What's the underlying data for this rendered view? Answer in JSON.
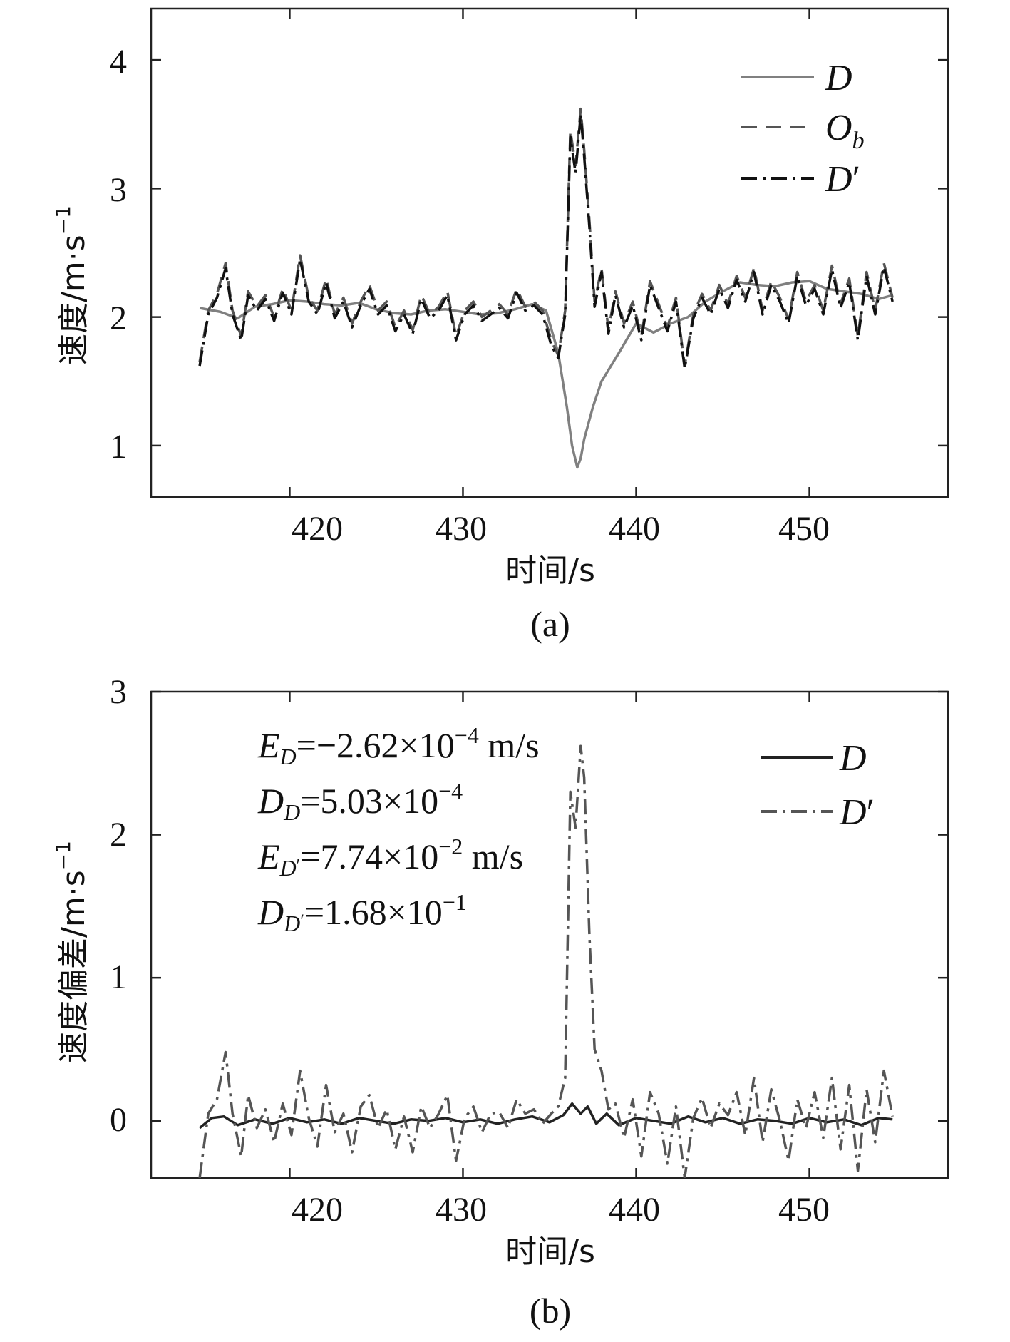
{
  "chart_data": [
    {
      "panel_label": "(a)",
      "type": "line",
      "xlabel": "时间/s",
      "ylabel": "速度/m·s",
      "ylabel_superscript": "−1",
      "xlim": [
        412,
        458
      ],
      "ylim": [
        0.6,
        4.4
      ],
      "xticks": [
        "420",
        "430",
        "440",
        "450"
      ],
      "xtick_values": [
        420,
        430,
        440,
        450
      ],
      "yticks": [
        "1",
        "2",
        "3",
        "4"
      ],
      "ytick_values": [
        1,
        2,
        3,
        4
      ],
      "legend": [
        {
          "name": "D",
          "sub": "",
          "prime": false,
          "style": "solid",
          "color": "#808080"
        },
        {
          "name": "O",
          "sub": "b",
          "prime": false,
          "style": "dashed",
          "color": "#555555"
        },
        {
          "name": "D",
          "sub": "",
          "prime": true,
          "style": "dashdot",
          "color": "#111111"
        }
      ],
      "series": [
        {
          "name": "D",
          "style": "solid",
          "color": "#808080",
          "x": [
            414.8,
            416,
            417,
            418,
            419,
            420,
            421,
            422,
            423,
            424,
            425,
            426,
            427,
            428,
            429,
            430,
            431,
            432,
            433,
            434,
            434.8,
            435.5,
            436,
            436.3,
            436.6,
            436.8,
            437,
            437.5,
            438,
            439,
            440,
            441,
            442,
            443,
            444,
            445,
            446,
            447,
            448,
            449,
            450,
            451,
            452,
            453,
            454,
            454.8
          ],
          "y": [
            2.07,
            2.04,
            1.99,
            2.08,
            2.1,
            2.13,
            2.12,
            2.1,
            2.09,
            2.11,
            2.06,
            2.03,
            2.02,
            2.05,
            2.06,
            2.04,
            2.02,
            2.03,
            2.06,
            2.1,
            2.05,
            1.72,
            1.3,
            1.0,
            0.83,
            0.9,
            1.05,
            1.3,
            1.5,
            1.72,
            1.95,
            1.88,
            1.95,
            2.0,
            2.12,
            2.2,
            2.27,
            2.25,
            2.24,
            2.27,
            2.28,
            2.22,
            2.2,
            2.18,
            2.14,
            2.17
          ]
        },
        {
          "name": "O_b",
          "style": "dashed",
          "color": "#555555",
          "x": [
            414.8,
            415.3,
            415.8,
            416.3,
            416.7,
            417.2,
            417.6,
            418.1,
            418.6,
            419.1,
            419.6,
            420.1,
            420.6,
            421.1,
            421.6,
            422.1,
            422.6,
            423.1,
            423.6,
            424.1,
            424.6,
            425.1,
            425.6,
            426.1,
            426.6,
            427.1,
            427.6,
            428.1,
            428.6,
            429.1,
            429.6,
            430.1,
            430.6,
            431.1,
            431.6,
            432.1,
            432.6,
            433.1,
            433.6,
            434.1,
            434.6,
            435.1,
            435.5,
            435.9,
            436.2,
            436.5,
            436.8,
            437.0,
            437.3,
            437.6,
            438.0,
            438.4,
            438.8,
            439.3,
            439.8,
            440.3,
            440.8,
            441.3,
            441.8,
            442.3,
            442.8,
            443.3,
            443.8,
            444.3,
            444.8,
            445.3,
            445.8,
            446.3,
            446.8,
            447.3,
            447.8,
            448.3,
            448.8,
            449.3,
            449.8,
            450.3,
            450.8,
            451.3,
            451.8,
            452.3,
            452.8,
            453.3,
            453.8,
            454.3,
            454.8
          ],
          "y": [
            1.65,
            2.05,
            2.18,
            2.42,
            2.05,
            1.85,
            2.2,
            2.08,
            2.17,
            2.0,
            2.22,
            2.05,
            2.48,
            2.15,
            2.05,
            2.3,
            2.02,
            2.15,
            1.95,
            2.12,
            2.25,
            2.05,
            2.12,
            1.92,
            2.05,
            1.9,
            2.17,
            2.02,
            2.08,
            2.2,
            1.85,
            2.05,
            2.12,
            2.0,
            2.05,
            2.1,
            2.02,
            2.22,
            2.08,
            2.12,
            2.05,
            1.82,
            1.7,
            2.05,
            3.45,
            3.18,
            3.62,
            3.3,
            2.75,
            2.12,
            2.38,
            1.9,
            2.2,
            1.95,
            2.12,
            1.85,
            2.28,
            2.1,
            1.92,
            2.15,
            1.62,
            2.02,
            2.18,
            2.05,
            2.25,
            2.1,
            2.32,
            2.15,
            2.38,
            2.05,
            2.28,
            2.15,
            1.98,
            2.35,
            2.12,
            2.25,
            2.05,
            2.4,
            2.1,
            2.3,
            1.85,
            2.35,
            2.05,
            2.42,
            2.15
          ]
        },
        {
          "name": "D'",
          "style": "dashdot",
          "color": "#111111",
          "x": [
            414.8,
            415.3,
            415.8,
            416.3,
            416.7,
            417.2,
            417.6,
            418.1,
            418.6,
            419.1,
            419.6,
            420.1,
            420.6,
            421.1,
            421.6,
            422.1,
            422.6,
            423.1,
            423.6,
            424.1,
            424.6,
            425.1,
            425.6,
            426.1,
            426.6,
            427.1,
            427.6,
            428.1,
            428.6,
            429.1,
            429.6,
            430.1,
            430.6,
            431.1,
            431.6,
            432.1,
            432.6,
            433.1,
            433.6,
            434.1,
            434.6,
            435.1,
            435.5,
            435.9,
            436.2,
            436.5,
            436.8,
            437.0,
            437.3,
            437.6,
            438.0,
            438.4,
            438.8,
            439.3,
            439.8,
            440.3,
            440.8,
            441.3,
            441.8,
            442.3,
            442.8,
            443.3,
            443.8,
            444.3,
            444.8,
            445.3,
            445.8,
            446.3,
            446.8,
            447.3,
            447.8,
            448.3,
            448.8,
            449.3,
            449.8,
            450.3,
            450.8,
            451.3,
            451.8,
            452.3,
            452.8,
            453.3,
            453.8,
            454.3,
            454.8
          ],
          "y": [
            1.62,
            2.02,
            2.15,
            2.38,
            2.02,
            1.82,
            2.17,
            2.05,
            2.14,
            1.97,
            2.19,
            2.02,
            2.45,
            2.12,
            2.02,
            2.27,
            1.99,
            2.12,
            1.92,
            2.09,
            2.22,
            2.02,
            2.09,
            1.89,
            2.02,
            1.87,
            2.14,
            1.99,
            2.05,
            2.17,
            1.82,
            2.02,
            2.09,
            1.97,
            2.02,
            2.07,
            1.99,
            2.19,
            2.05,
            2.09,
            2.02,
            1.78,
            1.68,
            2.02,
            3.4,
            3.12,
            3.58,
            3.25,
            2.7,
            2.08,
            2.35,
            1.87,
            2.17,
            1.92,
            2.09,
            1.82,
            2.25,
            2.07,
            1.89,
            2.12,
            1.6,
            1.99,
            2.15,
            2.02,
            2.22,
            2.07,
            2.29,
            2.12,
            2.35,
            2.02,
            2.25,
            2.12,
            1.95,
            2.32,
            2.09,
            2.22,
            2.02,
            2.37,
            2.07,
            2.27,
            1.82,
            2.32,
            2.02,
            2.39,
            2.12
          ]
        }
      ]
    },
    {
      "panel_label": "(b)",
      "type": "line",
      "xlabel": "时间/s",
      "ylabel": "速度偏差/m·s",
      "ylabel_superscript": "−1",
      "xlim": [
        412,
        458
      ],
      "ylim": [
        -0.4,
        3.0
      ],
      "xticks": [
        "420",
        "430",
        "440",
        "450"
      ],
      "xtick_values": [
        420,
        430,
        440,
        450
      ],
      "yticks": [
        "0",
        "1",
        "2",
        "3"
      ],
      "ytick_values": [
        0,
        1,
        2,
        3
      ],
      "legend": [
        {
          "name": "D",
          "sub": "",
          "prime": false,
          "style": "solid",
          "color": "#222222"
        },
        {
          "name": "D",
          "sub": "",
          "prime": true,
          "style": "dashdot",
          "color": "#555555"
        }
      ],
      "annotations": [
        {
          "var": "E",
          "sub": "D",
          "sub_prime": false,
          "text": "=−2.62×10",
          "exp": "−4",
          "unit": " m/s"
        },
        {
          "var": "D",
          "sub": "D",
          "sub_prime": false,
          "text": "=5.03×10",
          "exp": "−4",
          "unit": ""
        },
        {
          "var": "E",
          "sub": "D",
          "sub_prime": true,
          "text": "=7.74×10",
          "exp": "−2",
          "unit": " m/s"
        },
        {
          "var": "D",
          "sub": "D",
          "sub_prime": true,
          "text": "=1.68×10",
          "exp": "−1",
          "unit": ""
        }
      ],
      "series": [
        {
          "name": "D",
          "style": "solid",
          "color": "#222222",
          "x": [
            414.8,
            415.5,
            416.2,
            417,
            418,
            419,
            420,
            421,
            422,
            423,
            424,
            425,
            426,
            427,
            428,
            429,
            430,
            431,
            432,
            433,
            434,
            435,
            435.8,
            436.3,
            436.8,
            437.2,
            437.7,
            438.3,
            439,
            440,
            441,
            442,
            443,
            444,
            445,
            446,
            447,
            448,
            449,
            450,
            451,
            452,
            453,
            454,
            454.8
          ],
          "y": [
            -0.05,
            0.02,
            0.03,
            -0.03,
            0.01,
            -0.02,
            0.02,
            -0.01,
            0.01,
            -0.02,
            0.02,
            0.0,
            -0.02,
            0.01,
            0.0,
            0.02,
            -0.01,
            0.01,
            -0.02,
            0.01,
            0.03,
            -0.01,
            0.04,
            0.12,
            0.05,
            0.1,
            -0.02,
            0.05,
            -0.03,
            0.02,
            0.0,
            -0.02,
            0.03,
            -0.01,
            0.02,
            -0.02,
            0.01,
            0.0,
            -0.02,
            0.02,
            -0.01,
            0.01,
            -0.03,
            0.02,
            0.01
          ]
        },
        {
          "name": "D'",
          "style": "dashdot",
          "color": "#555555",
          "x": [
            414.8,
            415.3,
            415.8,
            416.3,
            416.7,
            417.2,
            417.6,
            418.1,
            418.6,
            419.1,
            419.6,
            420.1,
            420.6,
            421.1,
            421.6,
            422.1,
            422.6,
            423.1,
            423.6,
            424.1,
            424.6,
            425.1,
            425.6,
            426.1,
            426.6,
            427.1,
            427.6,
            428.1,
            428.6,
            429.1,
            429.6,
            430.1,
            430.6,
            431.1,
            431.6,
            432.1,
            432.6,
            433.1,
            433.6,
            434.1,
            434.6,
            435.1,
            435.5,
            435.9,
            436.2,
            436.5,
            436.8,
            437.0,
            437.3,
            437.6,
            438.0,
            438.4,
            438.8,
            439.3,
            439.8,
            440.3,
            440.8,
            441.3,
            441.8,
            442.3,
            442.8,
            443.3,
            443.8,
            444.3,
            444.8,
            445.3,
            445.8,
            446.3,
            446.8,
            447.3,
            447.8,
            448.3,
            448.8,
            449.3,
            449.8,
            450.3,
            450.8,
            451.3,
            451.8,
            452.3,
            452.8,
            453.3,
            453.8,
            454.3,
            454.8
          ],
          "y": [
            -0.4,
            0.05,
            0.15,
            0.48,
            0.05,
            -0.25,
            0.18,
            -0.05,
            0.08,
            -0.15,
            0.12,
            -0.1,
            0.35,
            0.02,
            -0.18,
            0.25,
            -0.08,
            0.05,
            -0.22,
            0.1,
            0.18,
            -0.05,
            0.08,
            -0.2,
            0.03,
            -0.22,
            0.1,
            -0.05,
            0.05,
            0.18,
            -0.28,
            0.02,
            0.1,
            -0.08,
            0.05,
            0.06,
            -0.05,
            0.15,
            0.05,
            0.08,
            -0.02,
            0.05,
            0.1,
            0.3,
            2.3,
            2.05,
            2.62,
            2.4,
            1.3,
            0.5,
            0.35,
            0.08,
            0.12,
            -0.12,
            0.15,
            -0.25,
            0.2,
            0.05,
            -0.3,
            0.1,
            -0.4,
            0.02,
            0.16,
            -0.05,
            0.12,
            0.04,
            0.2,
            -0.1,
            0.3,
            -0.15,
            0.22,
            0.0,
            -0.28,
            0.15,
            -0.05,
            0.2,
            -0.12,
            0.3,
            -0.2,
            0.25,
            -0.35,
            0.22,
            -0.15,
            0.35,
            0.03
          ]
        }
      ]
    }
  ]
}
